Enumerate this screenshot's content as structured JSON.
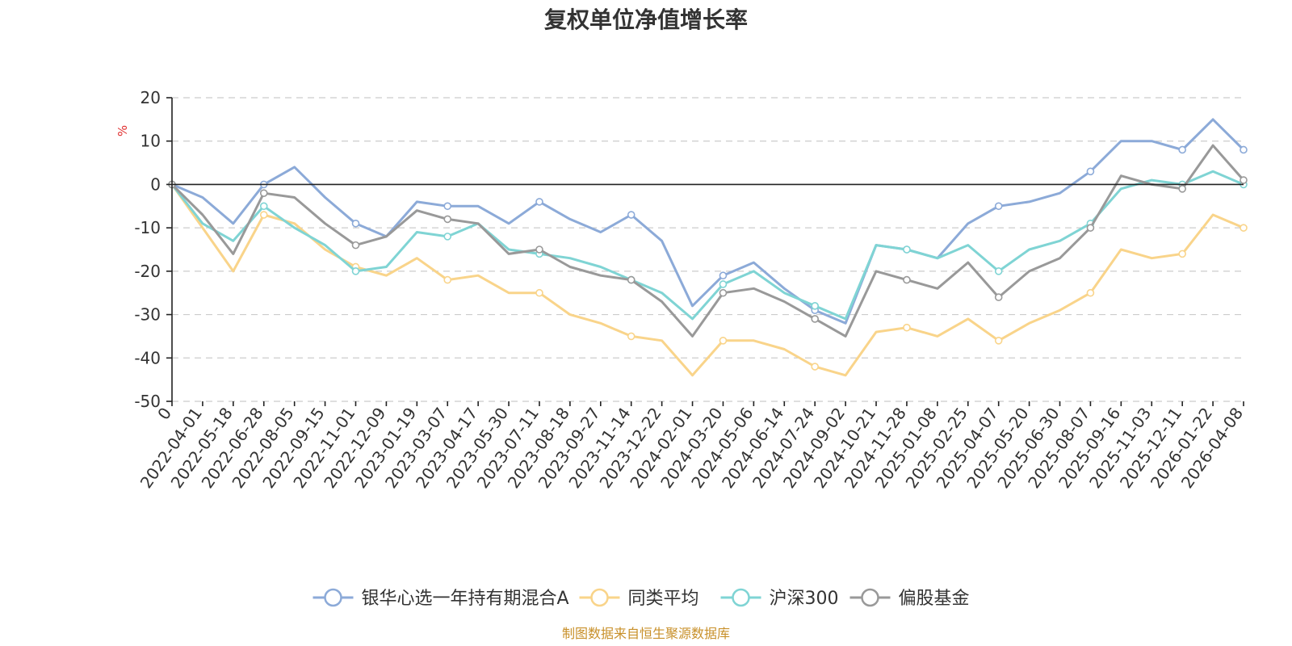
{
  "chart_data": {
    "type": "line",
    "title": "复权单位净值增长率",
    "ylabel": "%",
    "ylim": [
      -50,
      20
    ],
    "yticks": [
      20,
      10,
      0,
      -10,
      -20,
      -30,
      -40,
      -50
    ],
    "grid": true,
    "x": [
      "0",
      "2022-04-01",
      "2022-05-18",
      "2022-06-28",
      "2022-08-05",
      "2022-09-15",
      "2022-11-01",
      "2022-12-09",
      "2023-01-19",
      "2023-03-07",
      "2023-04-17",
      "2023-05-30",
      "2023-07-11",
      "2023-08-18",
      "2023-09-27",
      "2023-11-14",
      "2023-12-22",
      "2024-02-01",
      "2024-03-20",
      "2024-05-06",
      "2024-06-14",
      "2024-07-24",
      "2024-09-02",
      "2024-10-21",
      "2024-11-28",
      "2025-01-08",
      "2025-02-25",
      "2025-04-07",
      "2025-05-20",
      "2025-06-30",
      "2025-08-07",
      "2025-09-16",
      "2025-11-03",
      "2025-12-11",
      "2026-01-22",
      "2026-04-08"
    ],
    "series": [
      {
        "name": "银华心选一年持有期混合A",
        "color": "#8caad8",
        "values": [
          0,
          -3,
          -9,
          0,
          4,
          -3,
          -9,
          -12,
          -4,
          -5,
          -5,
          -9,
          -4,
          -8,
          -11,
          -7,
          -13,
          -28,
          -21,
          -18,
          -24,
          -29,
          -32,
          -14,
          -15,
          -17,
          -9,
          -5,
          -4,
          -2,
          3,
          10,
          10,
          8,
          15,
          8
        ]
      },
      {
        "name": "同类平均",
        "color": "#f9d48a",
        "values": [
          0,
          -10,
          -20,
          -7,
          -9,
          -15,
          -19,
          -21,
          -17,
          -22,
          -21,
          -25,
          -25,
          -30,
          -32,
          -35,
          -36,
          -44,
          -36,
          -36,
          -38,
          -42,
          -44,
          -34,
          -33,
          -35,
          -31,
          -36,
          -32,
          -29,
          -25,
          -15,
          -17,
          -16,
          -7,
          -10
        ]
      },
      {
        "name": "沪深300",
        "color": "#7fd4d4",
        "values": [
          0,
          -9,
          -13,
          -5,
          -10,
          -14,
          -20,
          -19,
          -11,
          -12,
          -9,
          -15,
          -16,
          -17,
          -19,
          -22,
          -25,
          -31,
          -23,
          -20,
          -25,
          -28,
          -31,
          -14,
          -15,
          -17,
          -14,
          -20,
          -15,
          -13,
          -9,
          -1,
          1,
          0,
          3,
          0
        ]
      },
      {
        "name": "偏股基金",
        "color": "#999999",
        "values": [
          0,
          -7,
          -16,
          -2,
          -3,
          -9,
          -14,
          -12,
          -6,
          -8,
          -9,
          -16,
          -15,
          -19,
          -21,
          -22,
          -27,
          -35,
          -25,
          -24,
          -27,
          -31,
          -35,
          -20,
          -22,
          -24,
          -18,
          -26,
          -20,
          -17,
          -10,
          2,
          0,
          -1,
          9,
          1
        ]
      }
    ]
  },
  "footer": {
    "source": "制图数据来自恒生聚源数据库"
  }
}
